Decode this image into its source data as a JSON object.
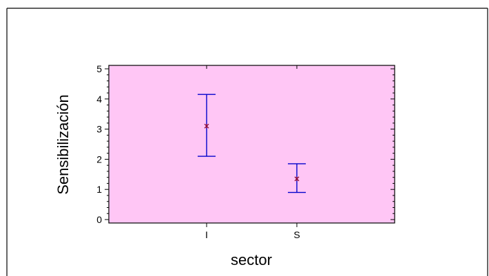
{
  "chart_data": {
    "type": "scatter",
    "title": "",
    "xlabel": "sector",
    "ylabel": "Sensibilización",
    "categories": [
      "I",
      "S"
    ],
    "series": [
      {
        "points": [
          {
            "x": "I",
            "mean": 3.1,
            "lower": 2.1,
            "upper": 4.15
          },
          {
            "x": "S",
            "mean": 1.35,
            "lower": 0.9,
            "upper": 1.85
          }
        ]
      }
    ],
    "ylim": [
      0,
      5
    ],
    "y_ticks": [
      "0",
      "1",
      "2",
      "3",
      "4",
      "5"
    ],
    "grid": false,
    "legend": "none",
    "colors": {
      "plot_background": "#ffc6f5",
      "error_bar": "#0000cc",
      "mean_marker": "#8b0a3a",
      "frame": "#000000"
    }
  }
}
